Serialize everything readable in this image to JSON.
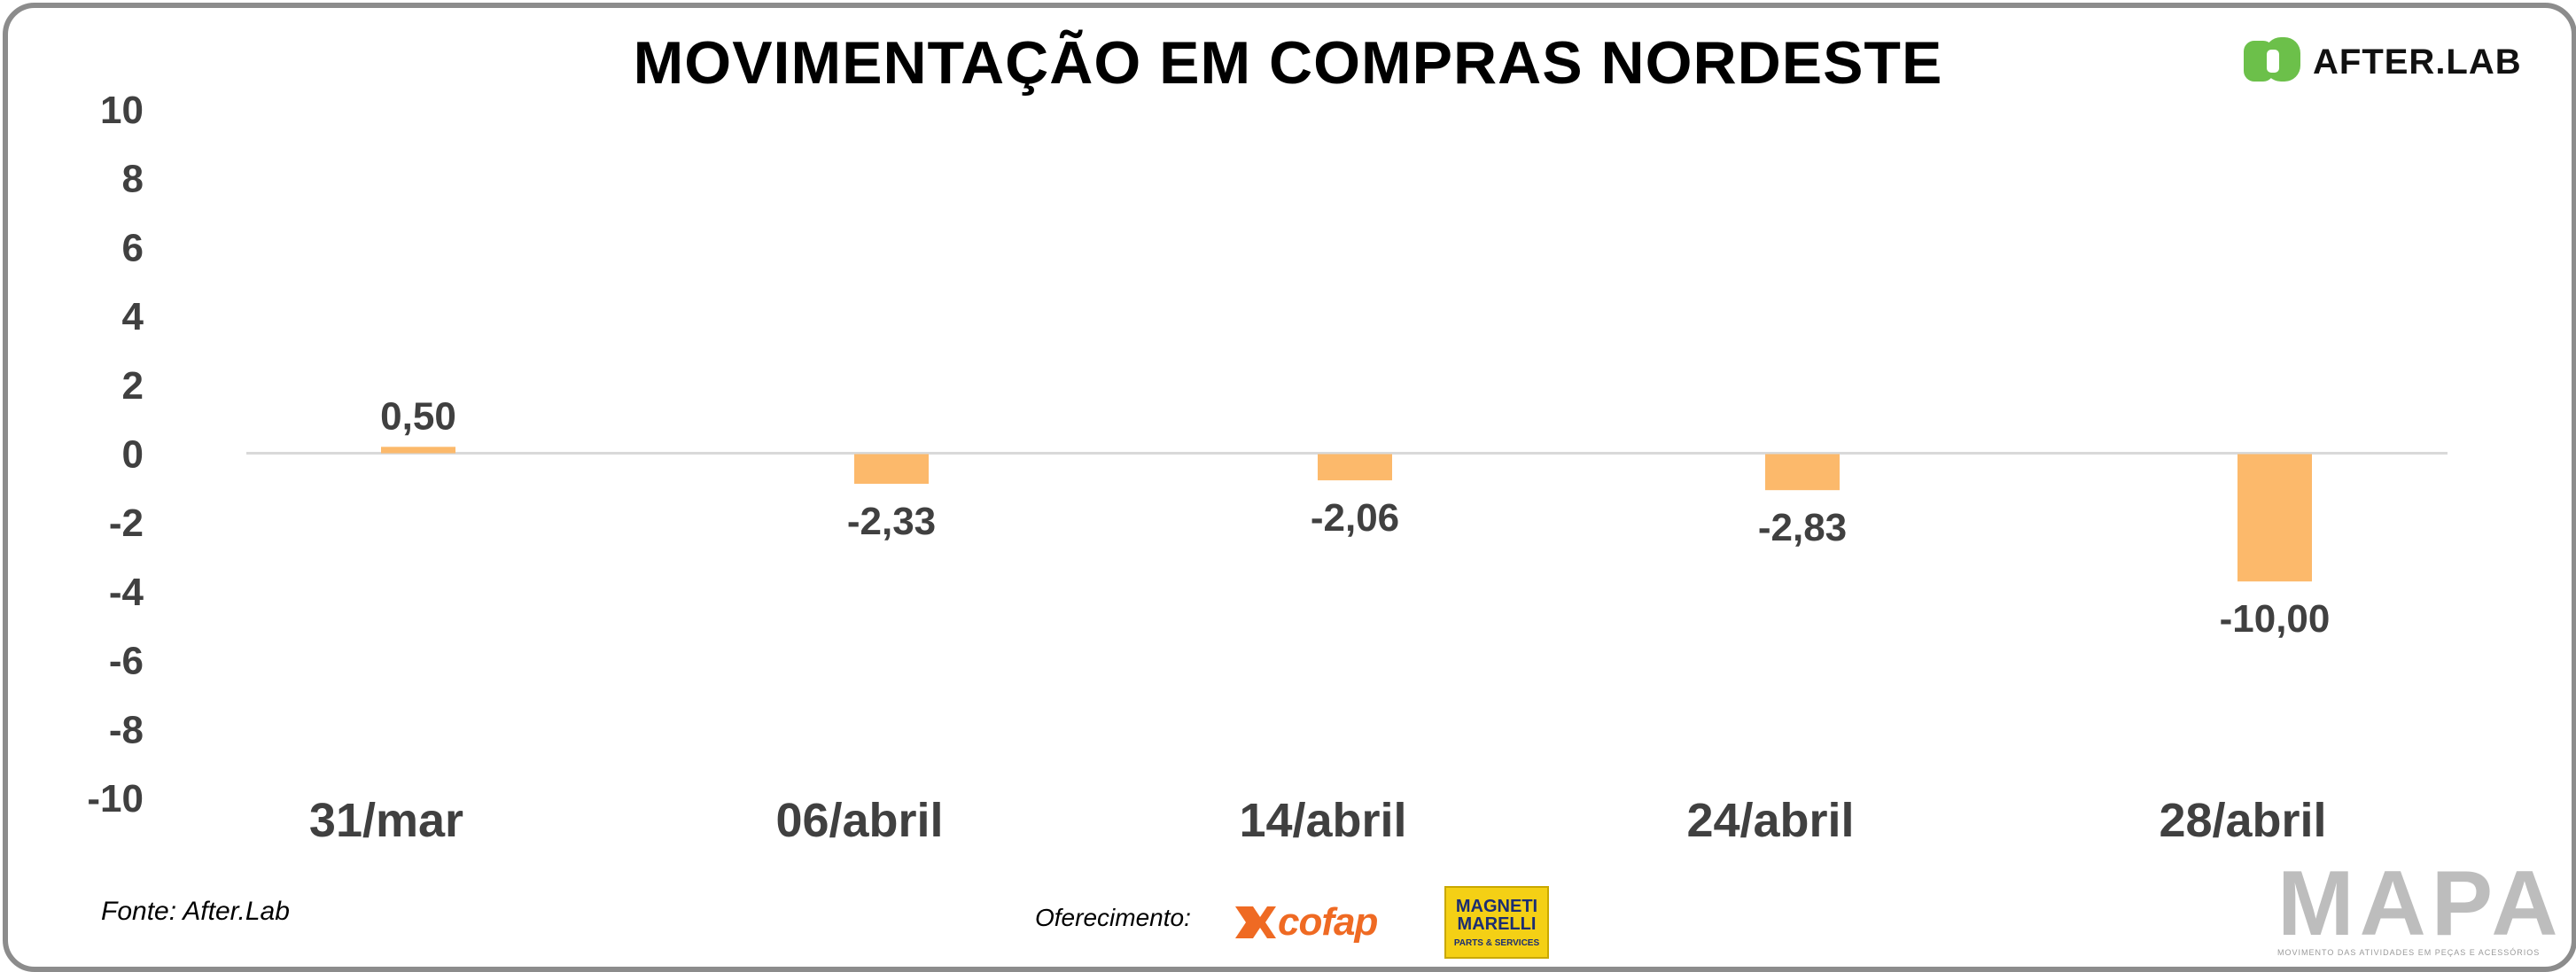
{
  "header": {
    "title": "MOVIMENTAÇÃO EM COMPRAS NORDESTE",
    "brand": "AFTER.LAB"
  },
  "footer": {
    "source": "Fonte: After.Lab",
    "sponsor_label": "Oferecimento:",
    "sponsor1": "cofap",
    "sponsor2_line1": "MAGNETI",
    "sponsor2_line2": "MARELLI",
    "sponsor2_sub": "PARTS & SERVICES",
    "mapa": "MAPA",
    "mapa_tagline": "MOVIMENTO DAS ATIVIDADES EM PEÇAS E ACESSÓRIOS"
  },
  "colors": {
    "bar": "#fcb96b",
    "axis_text": "#404040",
    "baseline": "#d9d9d9",
    "brand_green": "#6cc04a"
  },
  "chart_data": {
    "type": "bar",
    "title": "MOVIMENTAÇÃO EM COMPRAS NORDESTE",
    "categories": [
      "31/mar",
      "06/abril",
      "14/abril",
      "24/abril",
      "28/abril"
    ],
    "series": [
      {
        "values": [
          0.5,
          -2.33,
          -2.06,
          -2.83,
          -10.0
        ],
        "labels": [
          "0,50",
          "-2,33",
          "-2,06",
          "-2,83",
          "-10,00"
        ]
      }
    ],
    "ylim": [
      -10,
      10
    ],
    "yticks": [
      10,
      8,
      6,
      4,
      2,
      0,
      -2,
      -4,
      -6,
      -8,
      -10
    ],
    "ytick_labels": [
      "10",
      "8",
      "6",
      "4",
      "2",
      "0",
      "-2",
      "-4",
      "-6",
      "-8",
      "-10"
    ],
    "grid": false,
    "legend": false
  }
}
